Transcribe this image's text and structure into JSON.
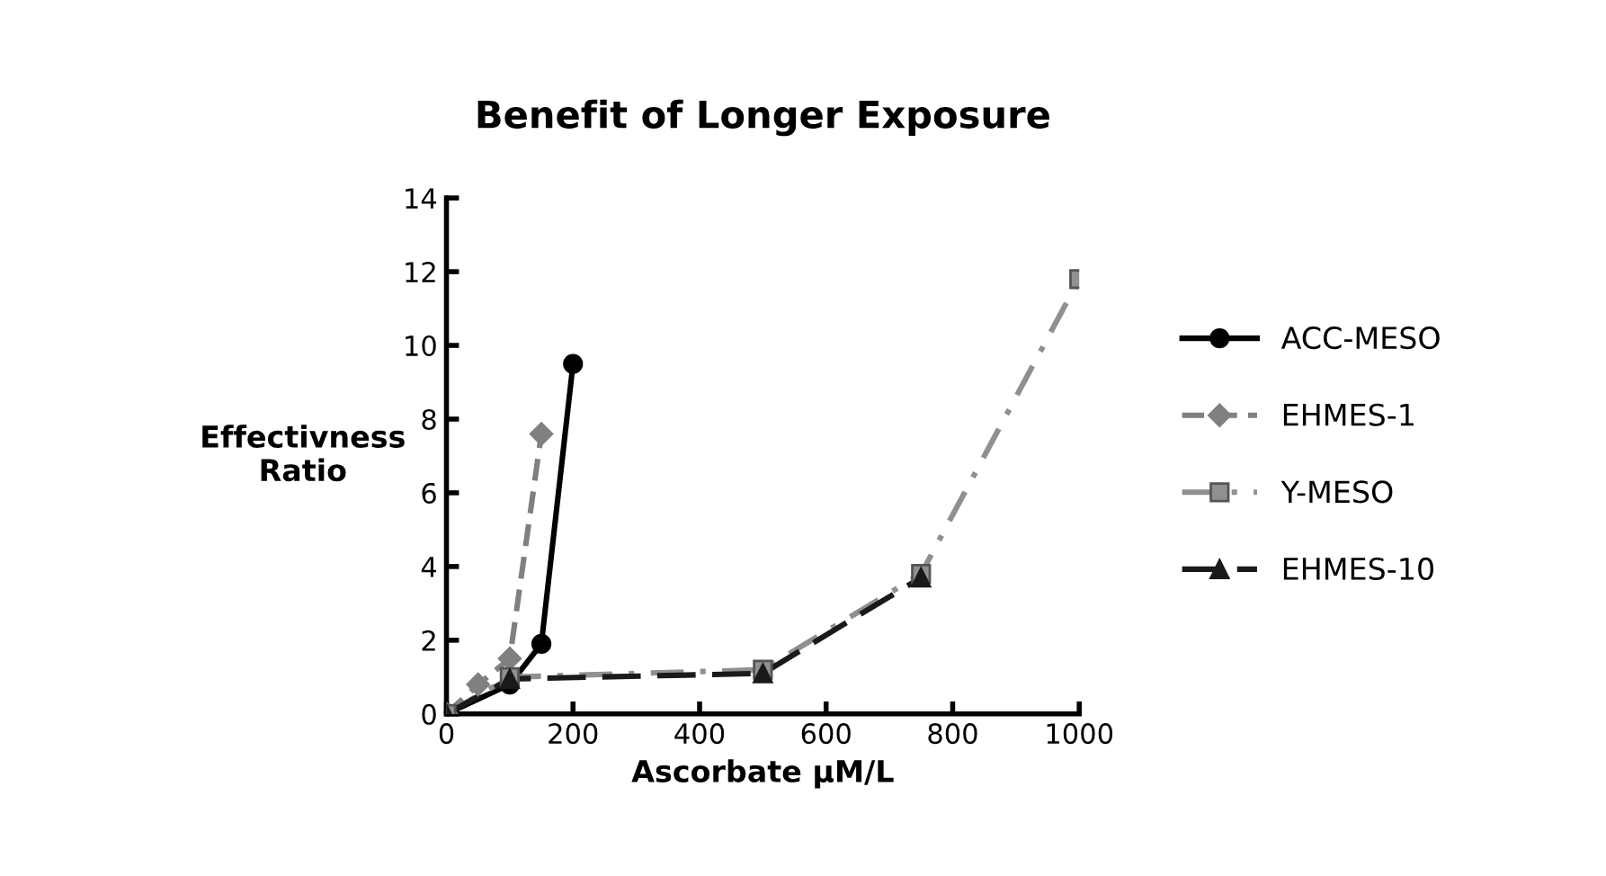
{
  "chart_data": {
    "type": "line",
    "title": "Benefit of Longer Exposure",
    "xlabel": "Ascorbate µM/L",
    "ylabel": "Effectivness\nRatio",
    "xlim": [
      0,
      1000
    ],
    "xticks": [
      0,
      200,
      400,
      600,
      800,
      1000
    ],
    "ylim": [
      0,
      14
    ],
    "yticks": [
      0,
      2,
      4,
      6,
      8,
      10,
      12,
      14
    ],
    "grid": false,
    "legend": "right",
    "series": [
      {
        "name": "ACC-MESO",
        "color": "#000000",
        "marker": "circle",
        "line_style": "solid",
        "x": [
          0,
          100,
          150,
          200
        ],
        "values": [
          0,
          0.8,
          1.9,
          9.5
        ]
      },
      {
        "name": "EHMES-1",
        "color": "#808080",
        "marker": "diamond",
        "line_style": "dashed",
        "x": [
          0,
          50,
          100,
          150
        ],
        "values": [
          0,
          0.8,
          1.5,
          7.6
        ]
      },
      {
        "name": "Y-MESO",
        "color": "#909090",
        "marker": "square",
        "line_style": "dashdot",
        "x": [
          0,
          100,
          500,
          750,
          1000
        ],
        "values": [
          0,
          1.0,
          1.2,
          3.8,
          11.8
        ]
      },
      {
        "name": "EHMES-10",
        "color": "#1a1a1a",
        "marker": "triangle",
        "line_style": "longdash",
        "x": [
          0,
          100,
          500,
          750
        ],
        "values": [
          0,
          0.95,
          1.1,
          3.7
        ]
      }
    ]
  }
}
